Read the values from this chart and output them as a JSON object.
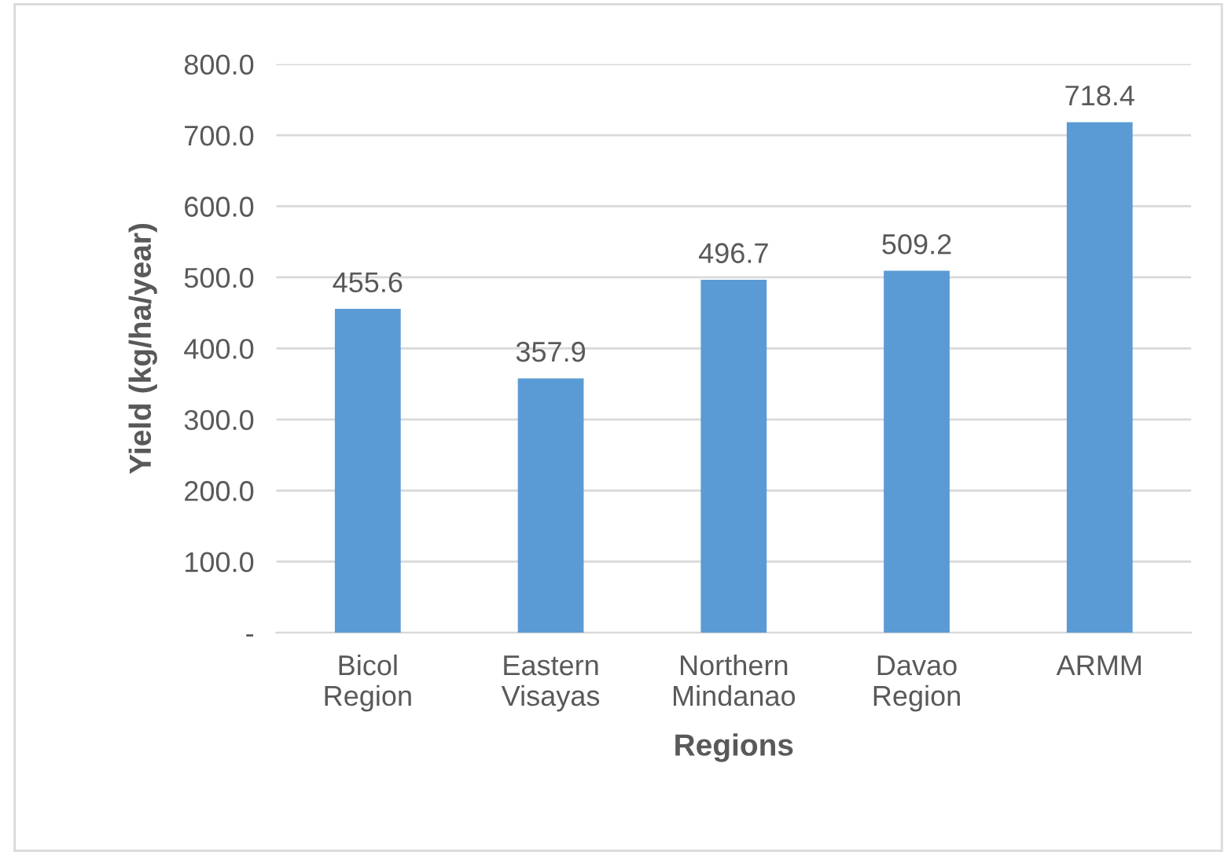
{
  "chart_data": {
    "type": "bar",
    "xlabel": "Regions",
    "ylabel": "Yield (kg/ha/year)",
    "categories": [
      "Bicol\nRegion",
      "Eastern\nVisayas",
      "Northern\nMindanao",
      "Davao\nRegion",
      "ARMM"
    ],
    "values": [
      455.6,
      357.9,
      496.7,
      509.2,
      718.4
    ],
    "color": "#5b9bd5",
    "ylim": [
      0,
      800
    ],
    "yticks": [
      {
        "value": 0,
        "label": "-"
      },
      {
        "value": 100,
        "label": "100.0"
      },
      {
        "value": 200,
        "label": "200.0"
      },
      {
        "value": 300,
        "label": "300.0"
      },
      {
        "value": 400,
        "label": "400.0"
      },
      {
        "value": 500,
        "label": "500.0"
      },
      {
        "value": 600,
        "label": "600.0"
      },
      {
        "value": 700,
        "label": "700.0"
      },
      {
        "value": 800,
        "label": "800.0"
      }
    ],
    "grid": "y",
    "data_labels": true
  }
}
